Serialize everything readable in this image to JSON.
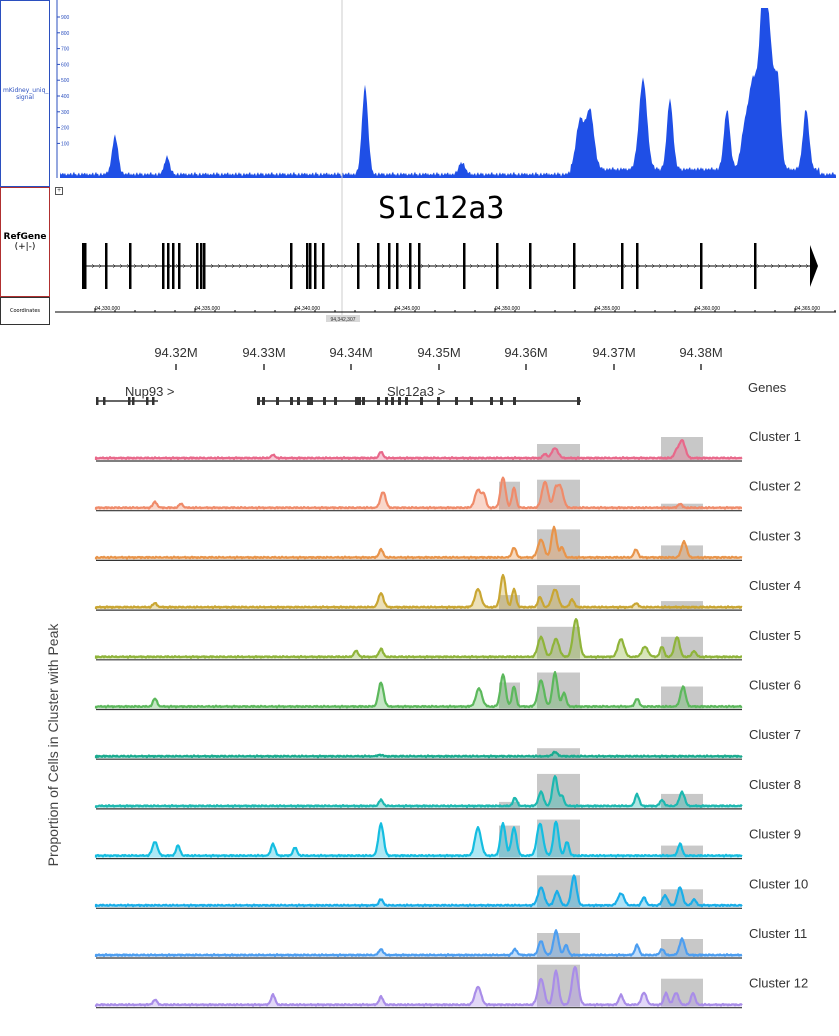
{
  "browser": {
    "signal_track_label": "mKidney_uniq_ signal",
    "signal_ticks": [
      "900",
      "800",
      "700",
      "600",
      "500",
      "400",
      "300",
      "200",
      "100"
    ],
    "refgene_label_line1": "RefGene",
    "refgene_label_line2": "(+|-)",
    "coordinates_label": "Coordinates",
    "gene_title": "S1c12a3",
    "coord_ticks": [
      "94,330,000",
      "94,335,000",
      "94,340,000",
      "94,345,000",
      "94,350,000",
      "94,355,000",
      "94,360,000",
      "94,365,000"
    ],
    "cursor_position": "94,342,307",
    "expand_icon": "plus-box-icon",
    "colors": {
      "signal": "#1f4fe6",
      "signal_border": "#2b4fbf",
      "refgene_border": "#b03030"
    }
  },
  "chart_data": {
    "type": "area",
    "ylabel": "Proportion of Cells in Cluster with Peak",
    "x_ticks": [
      "94.32M",
      "94.33M",
      "94.34M",
      "94.35M",
      "94.36M",
      "94.37M",
      "94.38M"
    ],
    "genes_label": "Genes",
    "genes": [
      {
        "name": "Nup93 >"
      },
      {
        "name": "Slc12a3 >"
      }
    ],
    "series": [
      {
        "name": "Cluster 1",
        "color": "#e8688a"
      },
      {
        "name": "Cluster 2",
        "color": "#ef8b6a"
      },
      {
        "name": "Cluster 3",
        "color": "#e8944a"
      },
      {
        "name": "Cluster 4",
        "color": "#c9a633"
      },
      {
        "name": "Cluster 5",
        "color": "#8fb43a"
      },
      {
        "name": "Cluster 6",
        "color": "#5cb85c"
      },
      {
        "name": "Cluster 7",
        "color": "#1aab8f"
      },
      {
        "name": "Cluster 8",
        "color": "#1db8b0"
      },
      {
        "name": "Cluster 9",
        "color": "#15bde0"
      },
      {
        "name": "Cluster 10",
        "color": "#1aaee8"
      },
      {
        "name": "Cluster 11",
        "color": "#4d9ef0"
      },
      {
        "name": "Cluster 12",
        "color": "#a98de8"
      }
    ]
  }
}
